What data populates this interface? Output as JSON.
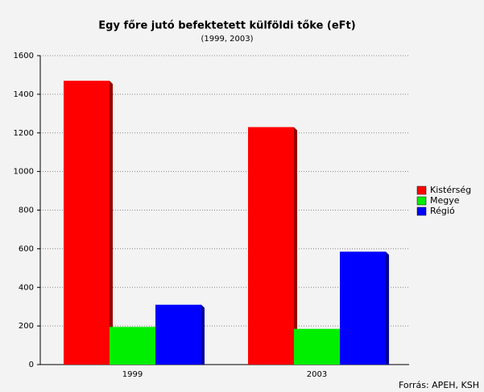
{
  "chart_data": {
    "type": "bar",
    "title": "Egy főre jutó befektetett külföldi tőke (eFt)",
    "subtitle": "(1999, 2003)",
    "categories": [
      "1999",
      "2003"
    ],
    "series": [
      {
        "name": "Kistérség",
        "color": "#ff0000",
        "values": [
          1470,
          1230
        ]
      },
      {
        "name": "Megye",
        "color": "#00ee00",
        "values": [
          195,
          185
        ]
      },
      {
        "name": "Régió",
        "color": "#0000ff",
        "values": [
          310,
          585
        ]
      }
    ],
    "ylim": [
      0,
      1600
    ],
    "yticks": [
      0,
      200,
      400,
      600,
      800,
      1000,
      1200,
      1400,
      1600
    ],
    "grid": true,
    "legend": "right",
    "source": "Forrás: APEH, KSH"
  }
}
